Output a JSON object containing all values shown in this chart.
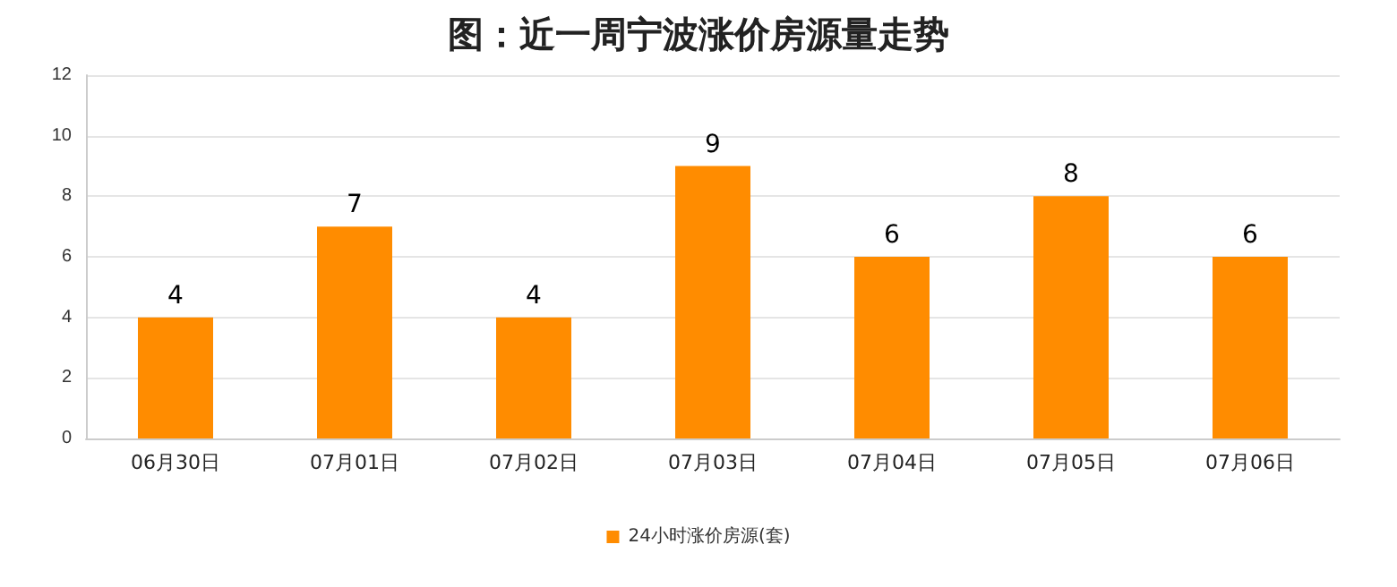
{
  "chart_data": {
    "type": "bar",
    "title": "图：近一周宁波涨价房源量走势",
    "categories": [
      "06月30日",
      "07月01日",
      "07月02日",
      "07月03日",
      "07月04日",
      "07月05日",
      "07月06日"
    ],
    "series": [
      {
        "name": "24小时涨价房源(套)",
        "color": "#ff8c00",
        "values": [
          4,
          7,
          4,
          9,
          6,
          8,
          6
        ]
      }
    ],
    "ylim": [
      0,
      12
    ],
    "yticks": [
      0,
      2,
      4,
      6,
      8,
      10,
      12
    ],
    "grid": "y",
    "legend": "bottom",
    "data_labels": true
  }
}
